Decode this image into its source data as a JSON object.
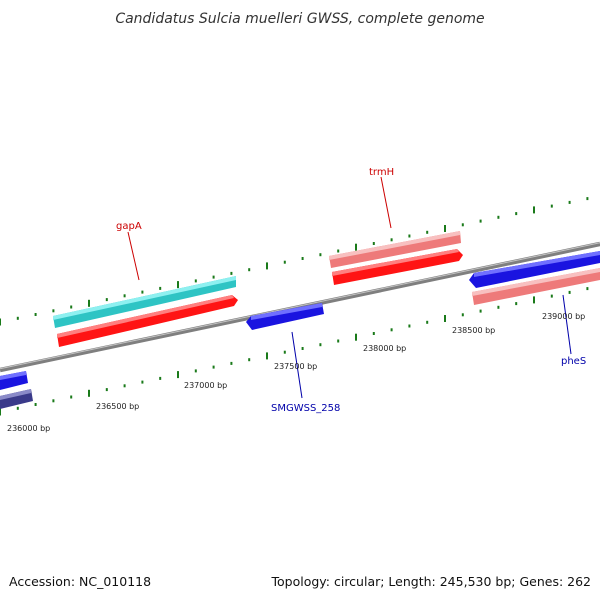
{
  "title": "Candidatus Sulcia muelleri GWSS, complete genome",
  "footer": {
    "accession": "Accession: NC_010118",
    "summary": "Topology: circular; Length: 245,530 bp; Genes: 262"
  },
  "colors": {
    "backbone": "#8a8a8a",
    "tick": "#1a7a1a",
    "cyan_gene": "#2ec4c4",
    "red_gene": "#ff1414",
    "pink_gene": "#ee7a7a",
    "blue_gene": "#1a14e0",
    "navy_gene": "#3a3a8a",
    "forward_label": "#cc0000",
    "reverse_label": "#0000aa"
  },
  "ticks": [
    {
      "label": "236000 bp"
    },
    {
      "label": "236500 bp"
    },
    {
      "label": "237000 bp"
    },
    {
      "label": "237500 bp"
    },
    {
      "label": "238000 bp"
    },
    {
      "label": "238500 bp"
    },
    {
      "label": "239000 bp"
    }
  ],
  "genes": [
    {
      "name": "gapA",
      "strand": "forward"
    },
    {
      "name": "trmH",
      "strand": "forward"
    },
    {
      "name": "SMGWSS_258",
      "strand": "reverse"
    },
    {
      "name": "pheS",
      "strand": "reverse"
    }
  ]
}
